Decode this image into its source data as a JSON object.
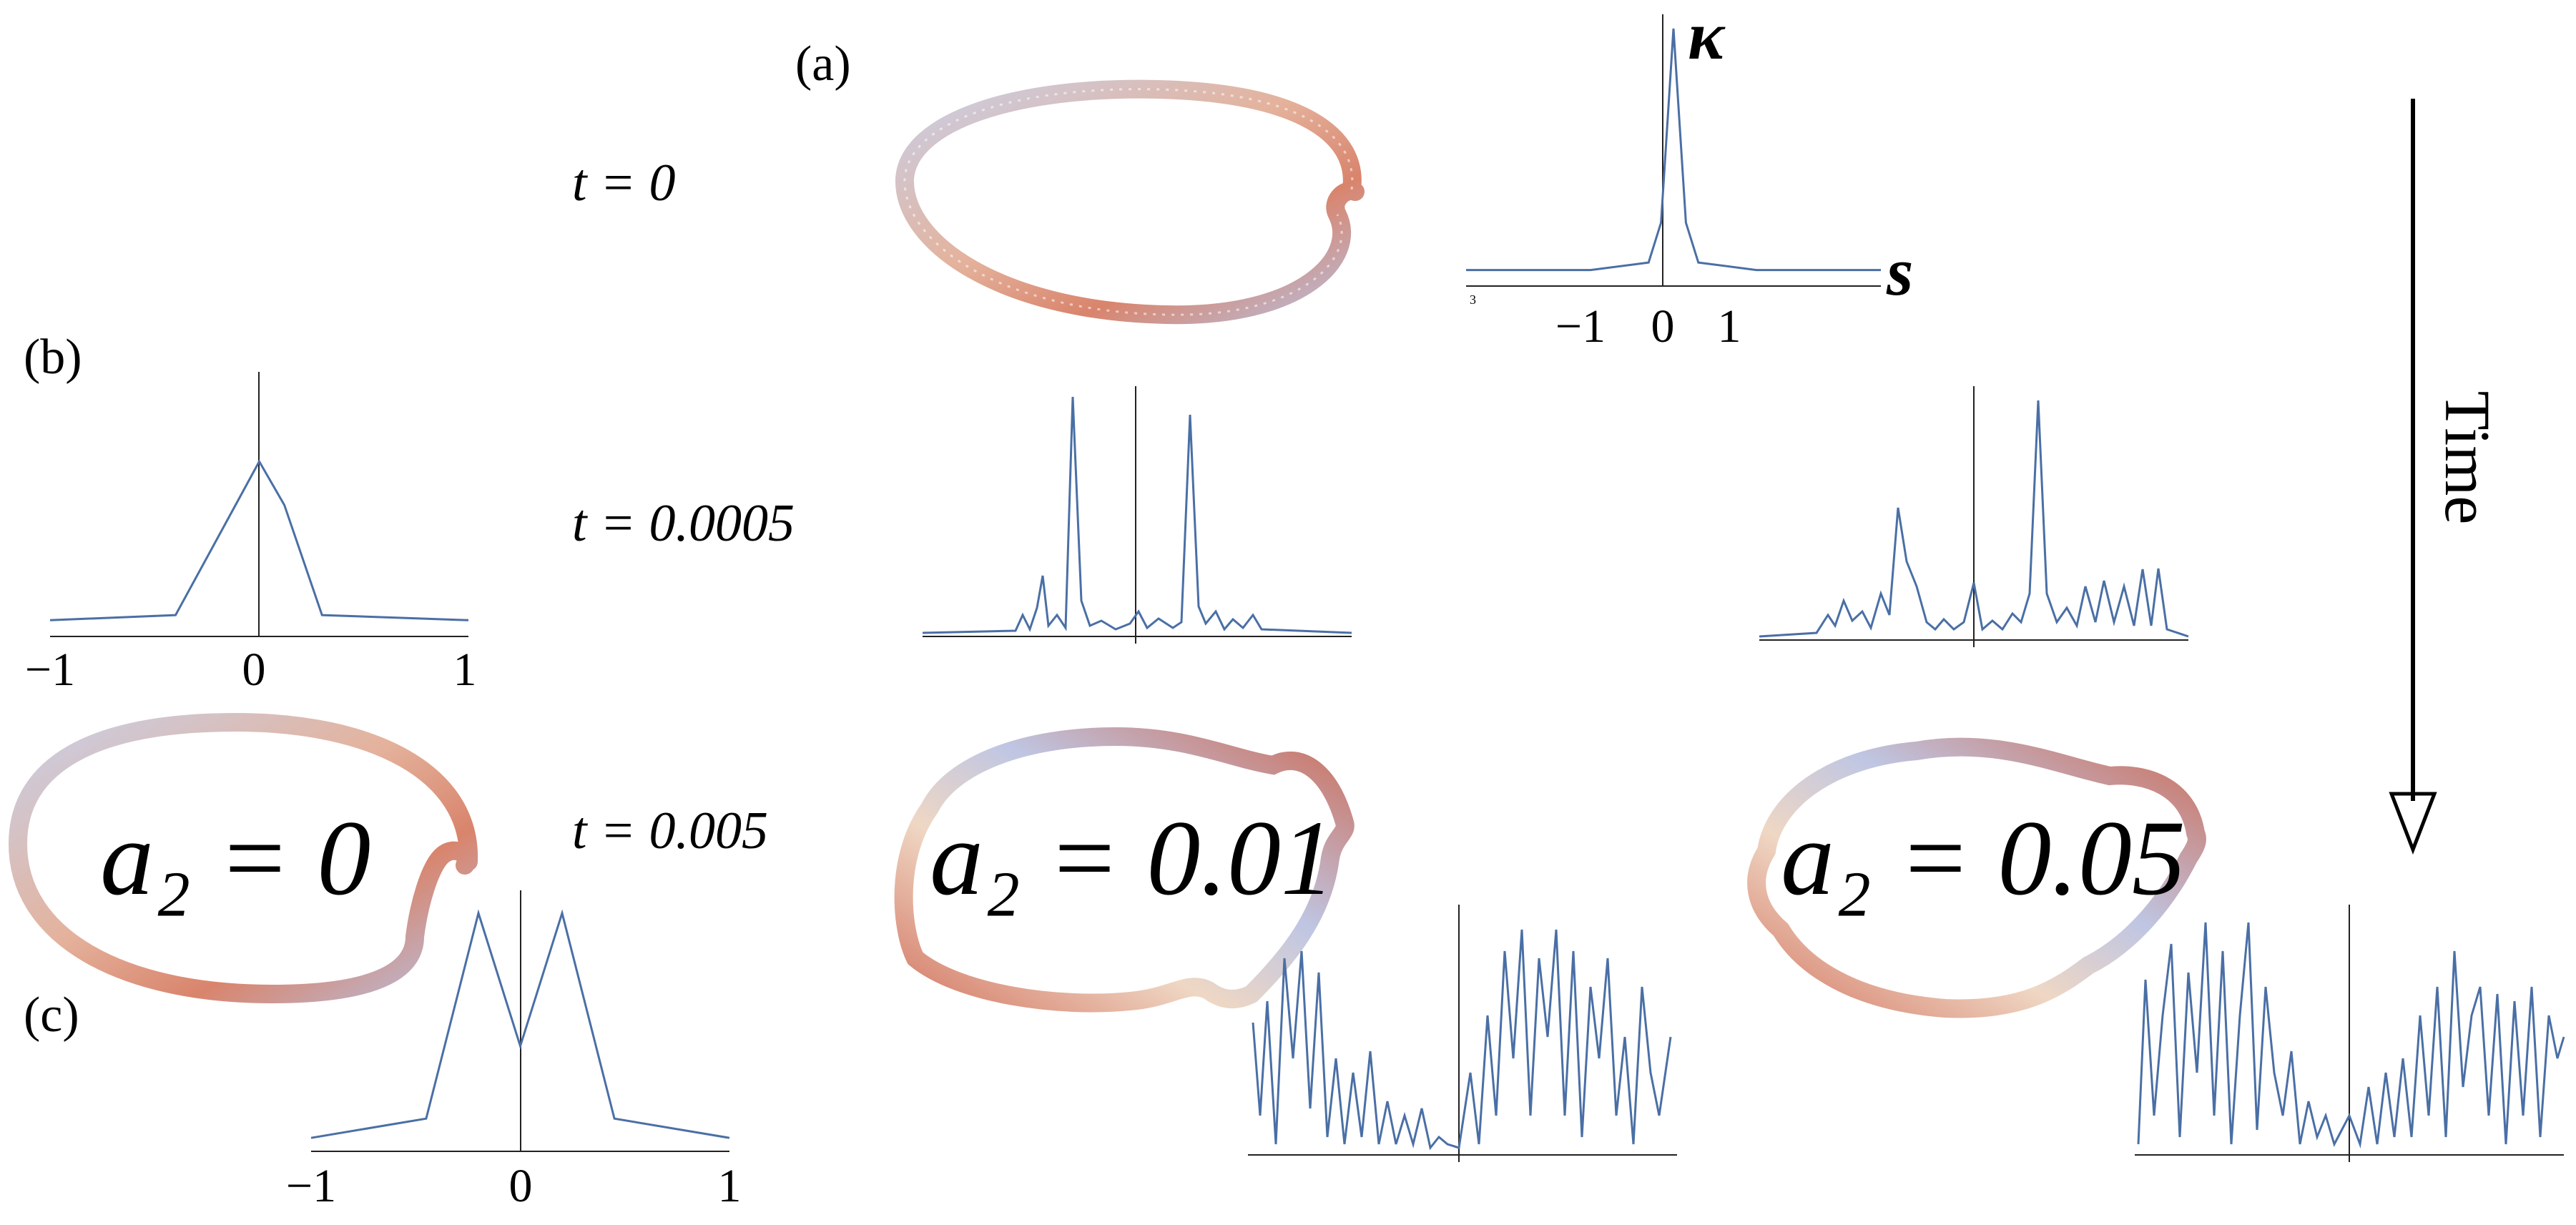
{
  "panel_labels": {
    "a": "(a)",
    "b": "(b)",
    "c": "(c)"
  },
  "time_labels": {
    "t0": "t = 0",
    "t1": "t = 0.0005",
    "t2": "t = 0.005"
  },
  "time_arrow_label": "Time",
  "param_labels": {
    "p0": "a₂ = 0",
    "p1": "a₂ = 0.01",
    "p2": "a₂ = 0.05"
  },
  "axis_symbols": {
    "kappa": "κ",
    "s": "s"
  },
  "ticks": {
    "a": [
      "−1",
      "0",
      "1"
    ],
    "a_small": "3",
    "b": [
      "−1",
      "0",
      "1"
    ],
    "c": [
      "−1",
      "0",
      "1"
    ]
  },
  "colors": {
    "curve": "#4a6fa5",
    "axis": "#222222",
    "tube_warm": "#d9846c",
    "tube_cool": "#a8b4d8"
  },
  "chart_data": [
    {
      "type": "line",
      "panel": "a",
      "x": [
        -2.5,
        -1,
        -0.3,
        -0.15,
        0,
        0.15,
        0.3,
        1,
        2.5
      ],
      "values": [
        0.03,
        0.03,
        0.06,
        0.22,
        1.0,
        0.22,
        0.06,
        0.03,
        0.03
      ],
      "xlim": [
        -2.5,
        2.5
      ]
    },
    {
      "type": "line",
      "panel": "b",
      "x": [
        -1,
        -0.4,
        -0.1,
        0,
        0.12,
        0.3,
        1
      ],
      "values": [
        0.03,
        0.05,
        0.5,
        0.65,
        0.48,
        0.05,
        0.03
      ],
      "xlim": [
        -1,
        1
      ]
    },
    {
      "type": "line",
      "panel": "c",
      "x": [
        -1,
        -0.45,
        -0.2,
        0,
        0.2,
        0.45,
        1
      ],
      "values": [
        0.02,
        0.1,
        0.95,
        0.4,
        0.95,
        0.1,
        0.02
      ],
      "xlim": [
        -1,
        1
      ]
    }
  ]
}
